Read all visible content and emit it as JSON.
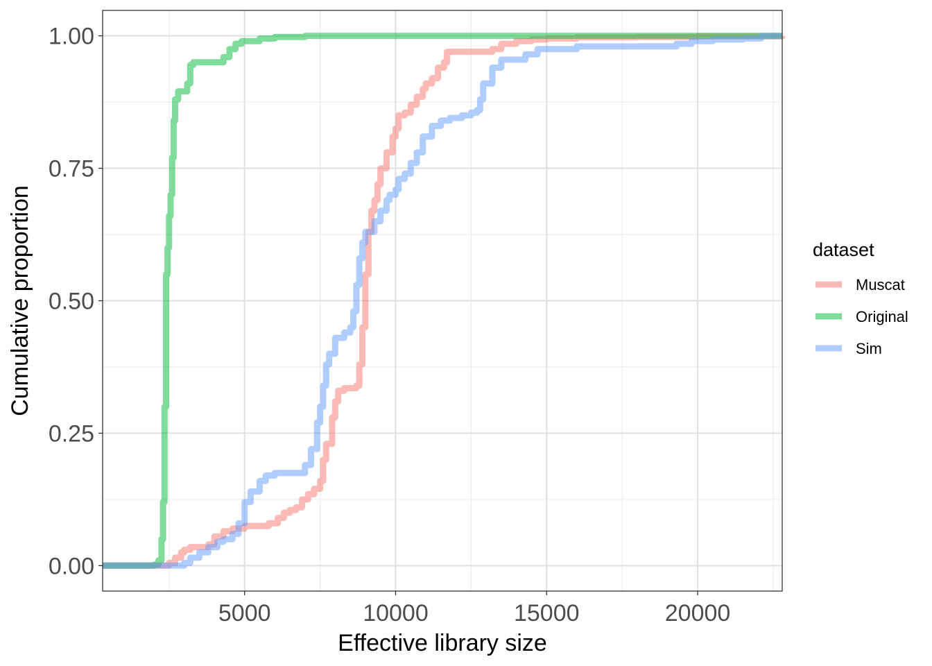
{
  "chart_data": {
    "type": "line",
    "subtype": "ecdf",
    "title": "",
    "xlabel": "Effective library size",
    "ylabel": "Cumulative proportion",
    "xlim": [
      300,
      22800
    ],
    "ylim": [
      -0.048,
      1.048
    ],
    "x_ticks": [
      5000,
      10000,
      15000,
      20000
    ],
    "x_tick_labels": [
      "5000",
      "10000",
      "15000",
      "20000"
    ],
    "y_ticks": [
      0,
      0.25,
      0.5,
      0.75,
      1
    ],
    "y_tick_labels": [
      "0.00",
      "0.25",
      "0.50",
      "0.75",
      "1.00"
    ],
    "grid": true,
    "legend": {
      "title": "dataset",
      "position": "right",
      "entries": [
        "Muscat",
        "Original",
        "Sim"
      ]
    },
    "series": [
      {
        "name": "Muscat",
        "color": "#F8766D",
        "points": [
          [
            300,
            0
          ],
          [
            1800,
            0
          ],
          [
            2200,
            0
          ],
          [
            2500,
            0.005
          ],
          [
            2700,
            0.015
          ],
          [
            2900,
            0.025
          ],
          [
            3000,
            0.03
          ],
          [
            3200,
            0.035
          ],
          [
            3500,
            0.035
          ],
          [
            3800,
            0.04
          ],
          [
            4000,
            0.055
          ],
          [
            4300,
            0.065
          ],
          [
            4600,
            0.07
          ],
          [
            5000,
            0.075
          ],
          [
            5500,
            0.075
          ],
          [
            5800,
            0.08
          ],
          [
            6100,
            0.09
          ],
          [
            6300,
            0.1
          ],
          [
            6500,
            0.105
          ],
          [
            6700,
            0.11
          ],
          [
            6900,
            0.125
          ],
          [
            7100,
            0.135
          ],
          [
            7300,
            0.145
          ],
          [
            7500,
            0.16
          ],
          [
            7600,
            0.2
          ],
          [
            7700,
            0.23
          ],
          [
            7900,
            0.28
          ],
          [
            8000,
            0.31
          ],
          [
            8100,
            0.33
          ],
          [
            8300,
            0.335
          ],
          [
            8500,
            0.335
          ],
          [
            8700,
            0.34
          ],
          [
            8800,
            0.38
          ],
          [
            8900,
            0.45
          ],
          [
            9000,
            0.55
          ],
          [
            9100,
            0.63
          ],
          [
            9200,
            0.67
          ],
          [
            9300,
            0.69
          ],
          [
            9400,
            0.72
          ],
          [
            9500,
            0.75
          ],
          [
            9700,
            0.78
          ],
          [
            9900,
            0.81
          ],
          [
            10000,
            0.825
          ],
          [
            10100,
            0.85
          ],
          [
            10300,
            0.855
          ],
          [
            10500,
            0.87
          ],
          [
            10700,
            0.885
          ],
          [
            10900,
            0.9
          ],
          [
            11000,
            0.91
          ],
          [
            11200,
            0.92
          ],
          [
            11400,
            0.94
          ],
          [
            11600,
            0.95
          ],
          [
            11700,
            0.97
          ],
          [
            12000,
            0.97
          ],
          [
            12500,
            0.97
          ],
          [
            13200,
            0.975
          ],
          [
            13500,
            0.985
          ],
          [
            14000,
            0.99
          ],
          [
            14500,
            0.993
          ],
          [
            15000,
            0.995
          ],
          [
            16000,
            0.997
          ],
          [
            18000,
            0.998
          ],
          [
            20000,
            0.999
          ],
          [
            22800,
            1
          ]
        ]
      },
      {
        "name": "Original",
        "color": "#00BA38",
        "points": [
          [
            300,
            0
          ],
          [
            1800,
            0
          ],
          [
            2000,
            0.002
          ],
          [
            2150,
            0.01
          ],
          [
            2250,
            0.05
          ],
          [
            2300,
            0.12
          ],
          [
            2350,
            0.3
          ],
          [
            2400,
            0.55
          ],
          [
            2450,
            0.6
          ],
          [
            2500,
            0.66
          ],
          [
            2550,
            0.7
          ],
          [
            2600,
            0.77
          ],
          [
            2650,
            0.84
          ],
          [
            2700,
            0.88
          ],
          [
            2800,
            0.895
          ],
          [
            3000,
            0.895
          ],
          [
            3100,
            0.91
          ],
          [
            3200,
            0.945
          ],
          [
            3300,
            0.95
          ],
          [
            3600,
            0.95
          ],
          [
            4100,
            0.95
          ],
          [
            4300,
            0.96
          ],
          [
            4500,
            0.975
          ],
          [
            4700,
            0.985
          ],
          [
            4900,
            0.99
          ],
          [
            5200,
            0.99
          ],
          [
            5500,
            0.995
          ],
          [
            6000,
            0.998
          ],
          [
            7000,
            1
          ],
          [
            22800,
            1
          ]
        ]
      },
      {
        "name": "Sim",
        "color": "#619CFF",
        "points": [
          [
            300,
            0
          ],
          [
            2200,
            0
          ],
          [
            2800,
            0
          ],
          [
            3000,
            0.005
          ],
          [
            3200,
            0.015
          ],
          [
            3500,
            0.025
          ],
          [
            3800,
            0.035
          ],
          [
            4100,
            0.045
          ],
          [
            4300,
            0.05
          ],
          [
            4600,
            0.06
          ],
          [
            4800,
            0.08
          ],
          [
            5000,
            0.12
          ],
          [
            5200,
            0.14
          ],
          [
            5500,
            0.16
          ],
          [
            5700,
            0.17
          ],
          [
            6000,
            0.175
          ],
          [
            6500,
            0.175
          ],
          [
            7000,
            0.19
          ],
          [
            7200,
            0.22
          ],
          [
            7400,
            0.27
          ],
          [
            7500,
            0.3
          ],
          [
            7600,
            0.34
          ],
          [
            7700,
            0.38
          ],
          [
            7800,
            0.4
          ],
          [
            8000,
            0.43
          ],
          [
            8300,
            0.44
          ],
          [
            8500,
            0.45
          ],
          [
            8600,
            0.48
          ],
          [
            8700,
            0.53
          ],
          [
            8800,
            0.58
          ],
          [
            8900,
            0.61
          ],
          [
            9000,
            0.63
          ],
          [
            9300,
            0.65
          ],
          [
            9500,
            0.67
          ],
          [
            9700,
            0.69
          ],
          [
            9800,
            0.7
          ],
          [
            10000,
            0.71
          ],
          [
            10100,
            0.73
          ],
          [
            10300,
            0.74
          ],
          [
            10500,
            0.76
          ],
          [
            10700,
            0.78
          ],
          [
            10900,
            0.81
          ],
          [
            11200,
            0.83
          ],
          [
            11500,
            0.84
          ],
          [
            11800,
            0.845
          ],
          [
            12200,
            0.85
          ],
          [
            12500,
            0.855
          ],
          [
            12700,
            0.86
          ],
          [
            12800,
            0.88
          ],
          [
            12900,
            0.91
          ],
          [
            13200,
            0.94
          ],
          [
            13500,
            0.955
          ],
          [
            14000,
            0.955
          ],
          [
            14300,
            0.965
          ],
          [
            14700,
            0.975
          ],
          [
            15000,
            0.975
          ],
          [
            16000,
            0.98
          ],
          [
            17000,
            0.98
          ],
          [
            18000,
            0.98
          ],
          [
            19300,
            0.985
          ],
          [
            19800,
            0.99
          ],
          [
            20500,
            0.993
          ],
          [
            21500,
            0.995
          ],
          [
            22100,
            1
          ],
          [
            22800,
            1
          ]
        ]
      }
    ]
  }
}
